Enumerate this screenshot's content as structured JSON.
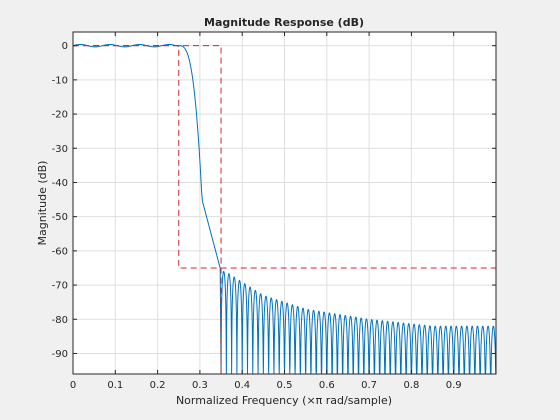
{
  "chart_data": {
    "type": "line",
    "title": "Magnitude Response (dB)",
    "xlabel": "Normalized Frequency (×π rad/sample)",
    "ylabel": "Magnitude (dB)",
    "xlim": [
      0,
      1
    ],
    "ylim": [
      -96,
      4
    ],
    "grid": true,
    "x_ticks": [
      0,
      0.1,
      0.2,
      0.3,
      0.4,
      0.5,
      0.6,
      0.7,
      0.8,
      0.9
    ],
    "x_tick_labels": [
      "0",
      "0.1",
      "0.2",
      "0.3",
      "0.4",
      "0.5",
      "0.6",
      "0.7",
      "0.8",
      "0.9"
    ],
    "y_ticks": [
      0,
      -10,
      -20,
      -30,
      -40,
      -50,
      -60,
      -70,
      -80,
      -90
    ],
    "y_tick_labels": [
      "0",
      "-10",
      "-20",
      "-30",
      "-40",
      "-50",
      "-60",
      "-70",
      "-80",
      "-90"
    ],
    "series": [
      {
        "color": "#0072bd",
        "style": "solid",
        "passband_edge": 0.25,
        "stopband_start": 0.35,
        "passband_level": 0,
        "sidelobe_peaks": [
          [
            0.36,
            -66
          ],
          [
            0.45,
            -73
          ],
          [
            0.55,
            -77
          ],
          [
            0.7,
            -80
          ],
          [
            0.85,
            -82
          ],
          [
            1.0,
            -82
          ]
        ],
        "null_floor": -96
      },
      {
        "color": "#d62728",
        "style": "dashed",
        "x": [
          0,
          0.25,
          0.25,
          1.0
        ],
        "y": [
          0,
          0,
          -65,
          -65
        ]
      },
      {
        "color": "#d62728",
        "style": "dashed",
        "x": [
          0,
          0.35,
          0.35
        ],
        "y": [
          0,
          0,
          -96
        ]
      }
    ]
  }
}
